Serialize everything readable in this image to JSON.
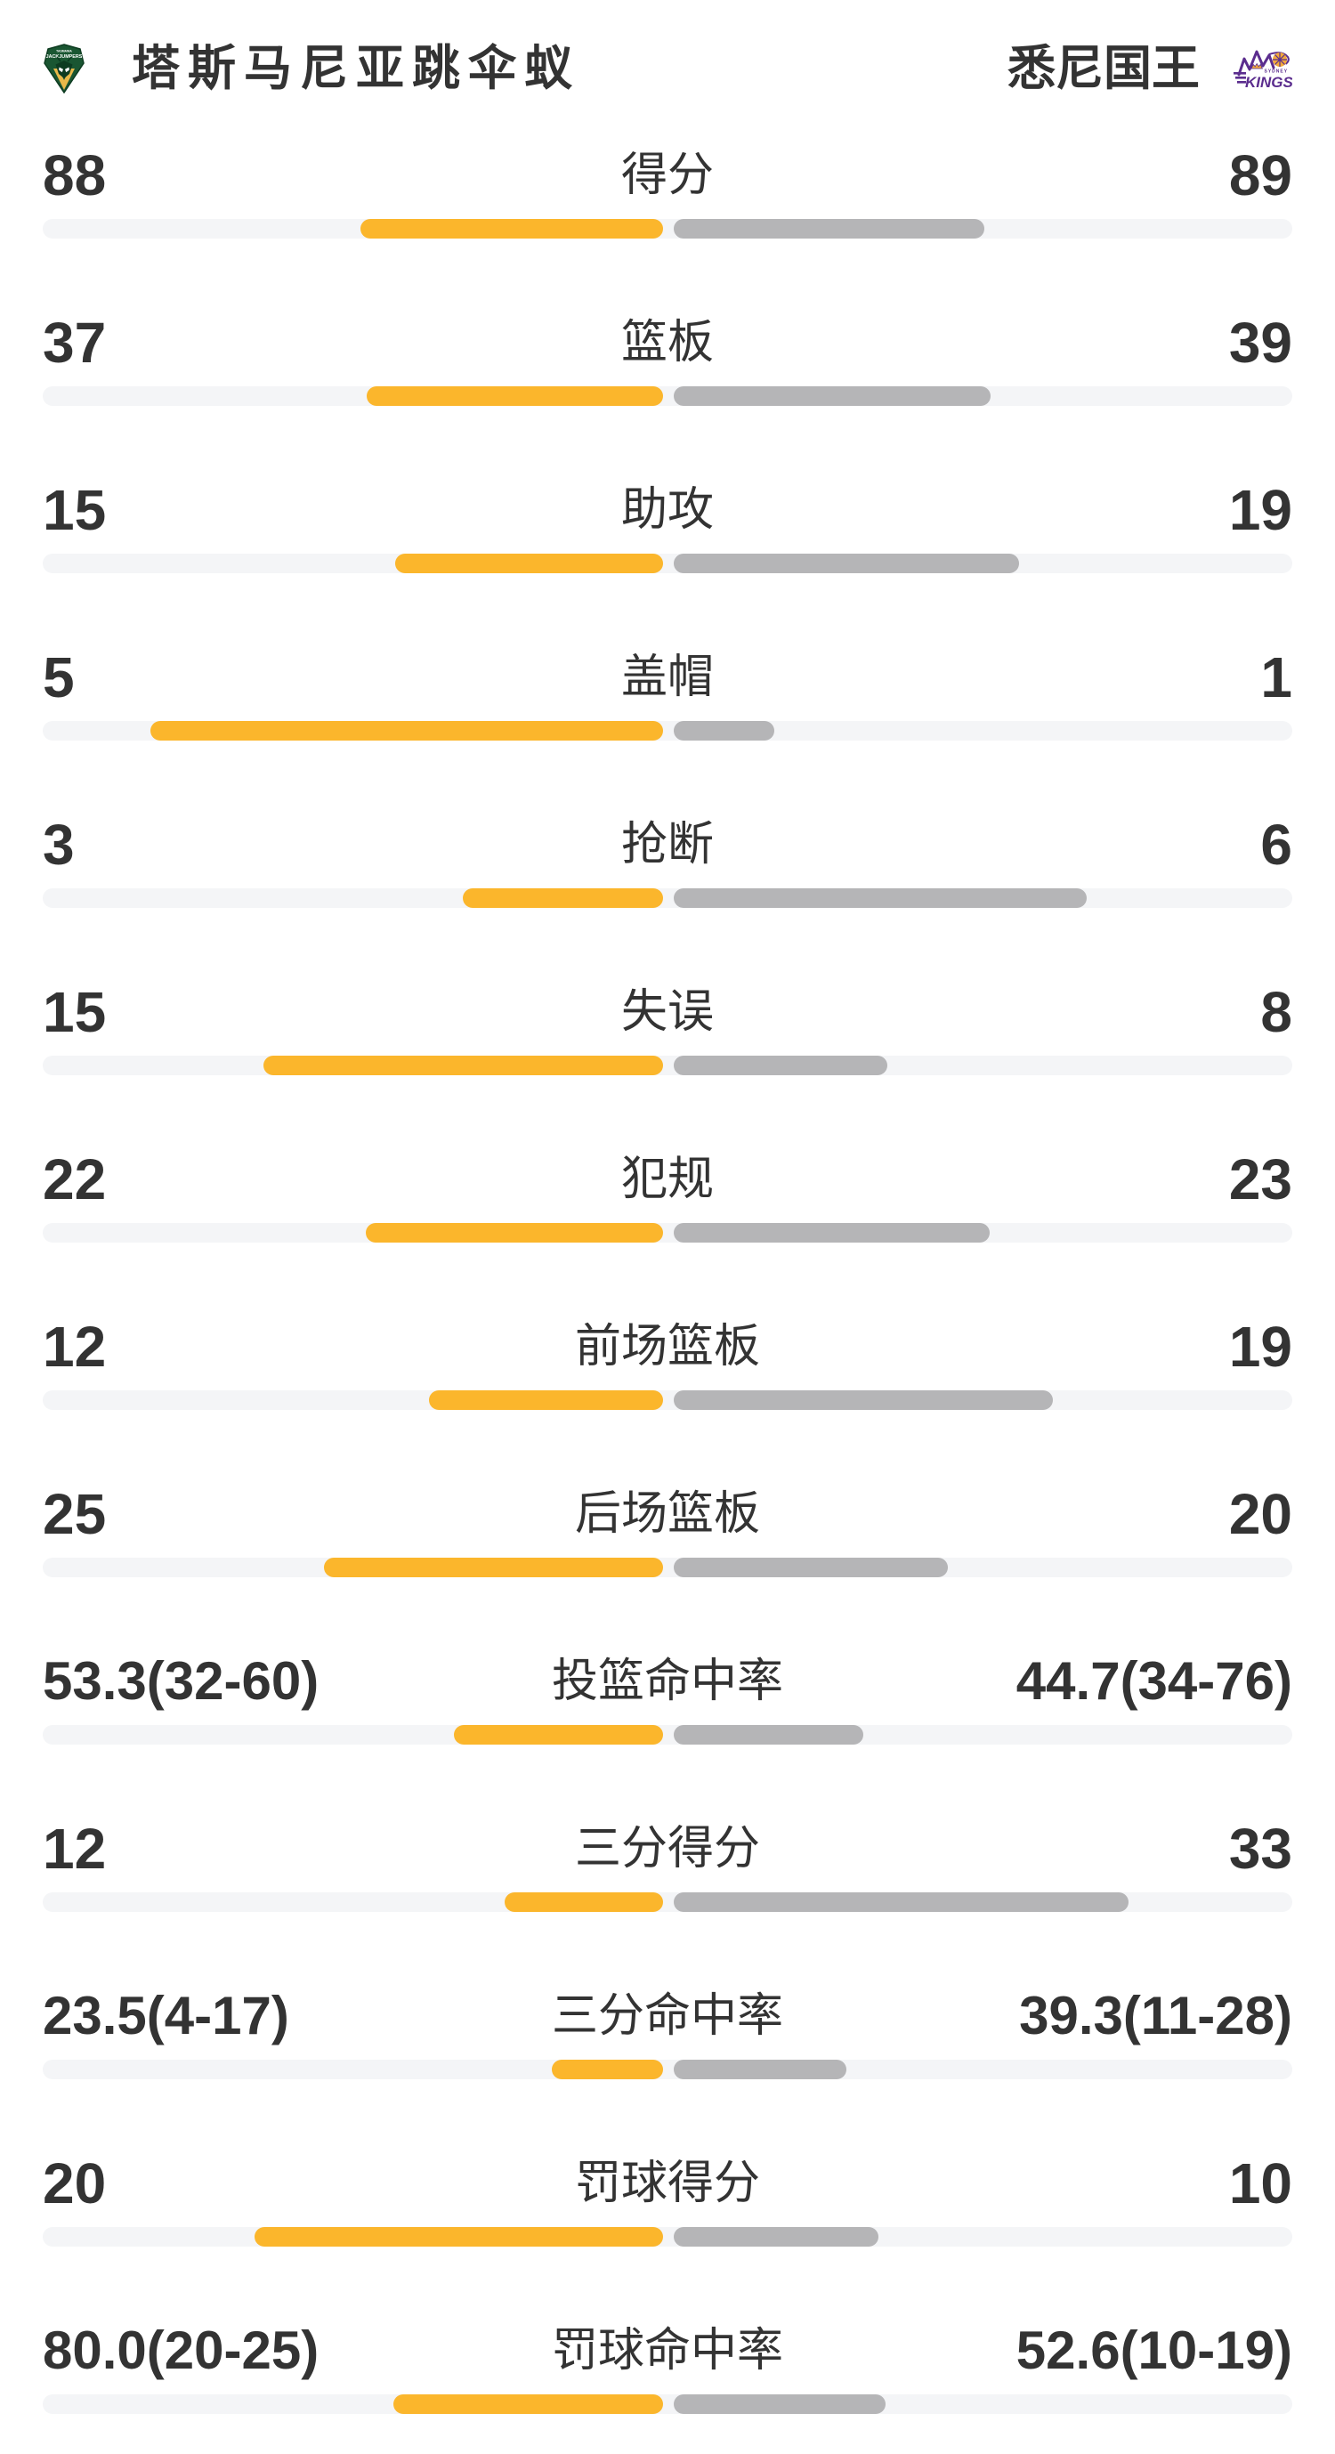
{
  "page": {
    "background": "#ffffff"
  },
  "header": {
    "home_team": {
      "name": "塔斯马尼亚跳伞蚁",
      "logo": "jackjumpers-crest"
    },
    "away_team": {
      "name": "悉尼国王",
      "logo": "sydney-kings"
    }
  },
  "colors": {
    "home_bar": "#FBB62C",
    "away_bar": "#B5B5B7",
    "bar_track": "#F4F5F7",
    "text": "#333333",
    "jackjumpers_green": "#1A5632",
    "jackjumpers_dark_green": "#0D3B20",
    "jackjumpers_gold": "#E9B949",
    "kings_purple": "#5B2D8E",
    "kings_orange": "#F2A93B"
  },
  "chart_data": {
    "type": "bar",
    "title": "塔斯马尼亚跳伞蚁 vs 悉尼国王 技术统计",
    "layout": "paired horizontal comparison bars; home=left yellow, away=right gray; count rows normalized by value/(home+away), percent rows by value/(100+value); legend is the team header",
    "home_team": "塔斯马尼亚跳伞蚁",
    "away_team": "悉尼国王",
    "rows": [
      {
        "label": "得分",
        "home": "88",
        "away": "89",
        "home_value": 88,
        "away_value": 89,
        "is_percent": false
      },
      {
        "label": "篮板",
        "home": "37",
        "away": "39",
        "home_value": 37,
        "away_value": 39,
        "is_percent": false
      },
      {
        "label": "助攻",
        "home": "15",
        "away": "19",
        "home_value": 15,
        "away_value": 19,
        "is_percent": false
      },
      {
        "label": "盖帽",
        "home": "5",
        "away": "1",
        "home_value": 5,
        "away_value": 1,
        "is_percent": false
      },
      {
        "label": "抢断",
        "home": "3",
        "away": "6",
        "home_value": 3,
        "away_value": 6,
        "is_percent": false
      },
      {
        "label": "失误",
        "home": "15",
        "away": "8",
        "home_value": 15,
        "away_value": 8,
        "is_percent": false
      },
      {
        "label": "犯规",
        "home": "22",
        "away": "23",
        "home_value": 22,
        "away_value": 23,
        "is_percent": false
      },
      {
        "label": "前场篮板",
        "home": "12",
        "away": "19",
        "home_value": 12,
        "away_value": 19,
        "is_percent": false
      },
      {
        "label": "后场篮板",
        "home": "25",
        "away": "20",
        "home_value": 25,
        "away_value": 20,
        "is_percent": false
      },
      {
        "label": "投篮命中率",
        "home": "53.3(32-60)",
        "away": "44.7(34-76)",
        "home_value": 53.3,
        "away_value": 44.7,
        "is_percent": true
      },
      {
        "label": "三分得分",
        "home": "12",
        "away": "33",
        "home_value": 12,
        "away_value": 33,
        "is_percent": false
      },
      {
        "label": "三分命中率",
        "home": "23.5(4-17)",
        "away": "39.3(11-28)",
        "home_value": 23.5,
        "away_value": 39.3,
        "is_percent": true
      },
      {
        "label": "罚球得分",
        "home": "20",
        "away": "10",
        "home_value": 20,
        "away_value": 10,
        "is_percent": false
      },
      {
        "label": "罚球命中率",
        "home": "80.0(20-25)",
        "away": "52.6(10-19)",
        "home_value": 80,
        "away_value": 52.6,
        "is_percent": true
      }
    ]
  }
}
